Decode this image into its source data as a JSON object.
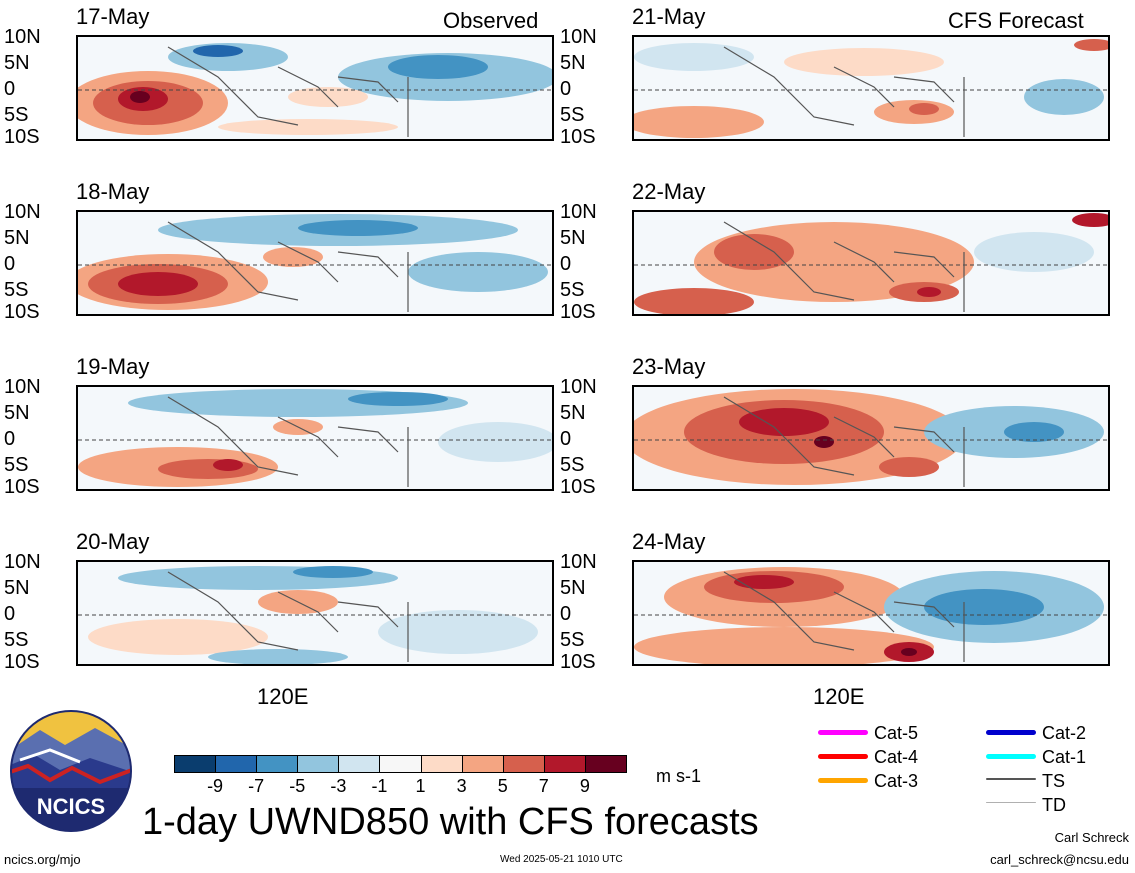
{
  "panels_left": [
    {
      "date": "17-May",
      "tag": "Observed"
    },
    {
      "date": "18-May",
      "tag": ""
    },
    {
      "date": "19-May",
      "tag": ""
    },
    {
      "date": "20-May",
      "tag": ""
    }
  ],
  "panels_right": [
    {
      "date": "21-May",
      "tag": "CFS Forecast"
    },
    {
      "date": "22-May",
      "tag": ""
    },
    {
      "date": "23-May",
      "tag": ""
    },
    {
      "date": "24-May",
      "tag": ""
    }
  ],
  "lat_labels": [
    "10N",
    "5N",
    "0",
    "5S",
    "10S"
  ],
  "lon_label": "120E",
  "colorbar": {
    "ticks": [
      "-9",
      "-7",
      "-5",
      "-3",
      "-1",
      "1",
      "3",
      "5",
      "7",
      "9"
    ],
    "colors": [
      "#0a3d6e",
      "#2166ac",
      "#4393c3",
      "#92c5de",
      "#d1e5f0",
      "#f7f7f7",
      "#fddbc7",
      "#f4a582",
      "#d6604d",
      "#b2182b",
      "#67001f"
    ],
    "unit": "m s-1"
  },
  "legend": [
    {
      "label": "Cat-5",
      "color": "#ff00ff"
    },
    {
      "label": "Cat-4",
      "color": "#ff0000"
    },
    {
      "label": "Cat-3",
      "color": "#ffa500"
    },
    {
      "label": "Cat-2",
      "color": "#0000cd"
    },
    {
      "label": "Cat-1",
      "color": "#00ffff"
    },
    {
      "label": "TS",
      "color": "#555555"
    },
    {
      "label": "TD",
      "color": "#b0b0b0"
    }
  ],
  "logo_text": "NCICS",
  "main_title": "1-day UWND850 with CFS forecasts",
  "footer": {
    "url": "ncics.org/mjo",
    "timestamp": "Wed 2025-05-21 1010 UTC",
    "author": "Carl Schreck",
    "email": "carl_schreck@ncsu.edu"
  }
}
